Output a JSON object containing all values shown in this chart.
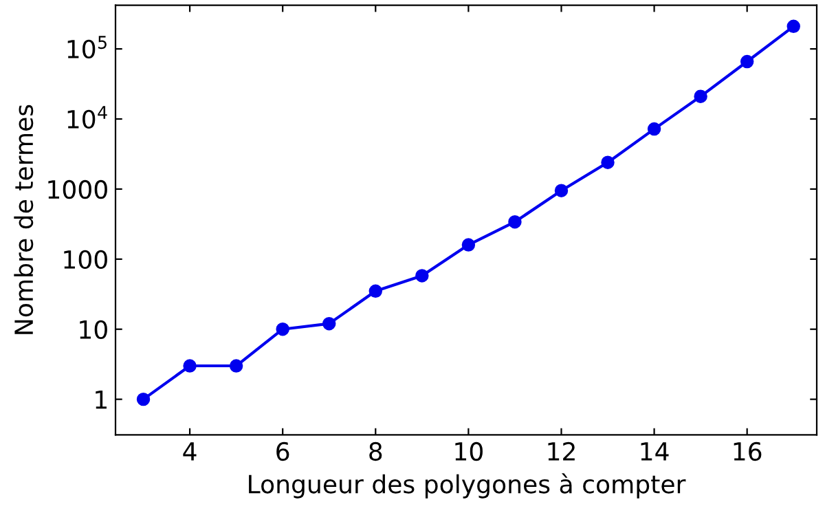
{
  "chart_data": {
    "type": "line",
    "xlabel": "Longueur des polygones à compter",
    "ylabel": "Nombre de termes",
    "x": [
      3,
      4,
      5,
      6,
      7,
      8,
      9,
      10,
      11,
      12,
      13,
      14,
      15,
      16,
      17
    ],
    "series": [
      {
        "color": "#0000ee",
        "values": [
          1,
          3,
          3,
          10,
          12,
          35,
          58,
          160,
          340,
          950,
          2400,
          7200,
          21000,
          66000,
          210000
        ]
      }
    ],
    "log": "y",
    "marker": "circle",
    "line_style": "solid",
    "grid": false,
    "legend": false,
    "xlim": [
      2.4,
      17.5
    ],
    "ylim": [
      0.31,
      420000
    ],
    "xticks": [
      4,
      6,
      8,
      10,
      12,
      14,
      16
    ],
    "yticks": [
      1,
      10,
      100,
      1000,
      {
        "value": 10000,
        "label": "10$^{4}$"
      },
      {
        "value": 100000,
        "label": "10$^{5}$"
      }
    ]
  }
}
